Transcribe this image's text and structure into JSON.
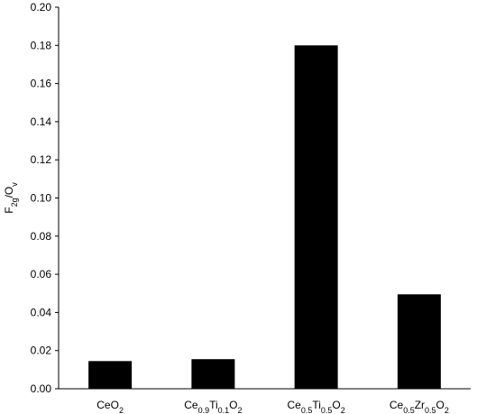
{
  "chart_data": {
    "type": "bar",
    "categories": [
      {
        "parts": [
          {
            "t": "CeO"
          },
          {
            "t": "2",
            "sub": true
          }
        ]
      },
      {
        "parts": [
          {
            "t": "Ce"
          },
          {
            "t": "0.9",
            "sub": true
          },
          {
            "t": "Ti"
          },
          {
            "t": "0.1",
            "sub": true
          },
          {
            "t": "O"
          },
          {
            "t": "2",
            "sub": true
          }
        ]
      },
      {
        "parts": [
          {
            "t": "Ce"
          },
          {
            "t": "0.5",
            "sub": true
          },
          {
            "t": "Ti"
          },
          {
            "t": "0.5",
            "sub": true
          },
          {
            "t": "O"
          },
          {
            "t": "2",
            "sub": true
          }
        ]
      },
      {
        "parts": [
          {
            "t": "Ce"
          },
          {
            "t": "0.5",
            "sub": true
          },
          {
            "t": "Zr"
          },
          {
            "t": "0.5",
            "sub": true
          },
          {
            "t": "O"
          },
          {
            "t": "2",
            "sub": true
          }
        ]
      }
    ],
    "values": [
      0.0145,
      0.0155,
      0.18,
      0.0495
    ],
    "title": "",
    "xlabel": "",
    "ylabel": {
      "parts": [
        {
          "t": "F"
        },
        {
          "t": "2g",
          "sub": true
        },
        {
          "t": "/O"
        },
        {
          "t": "v",
          "sub": true
        }
      ]
    },
    "ylim": [
      0,
      0.2
    ],
    "yticks": [
      "0.00",
      "0.02",
      "0.04",
      "0.06",
      "0.08",
      "0.10",
      "0.12",
      "0.14",
      "0.16",
      "0.18",
      "0.20"
    ],
    "grid": false,
    "legend": "none",
    "bar_color": "#000000"
  }
}
